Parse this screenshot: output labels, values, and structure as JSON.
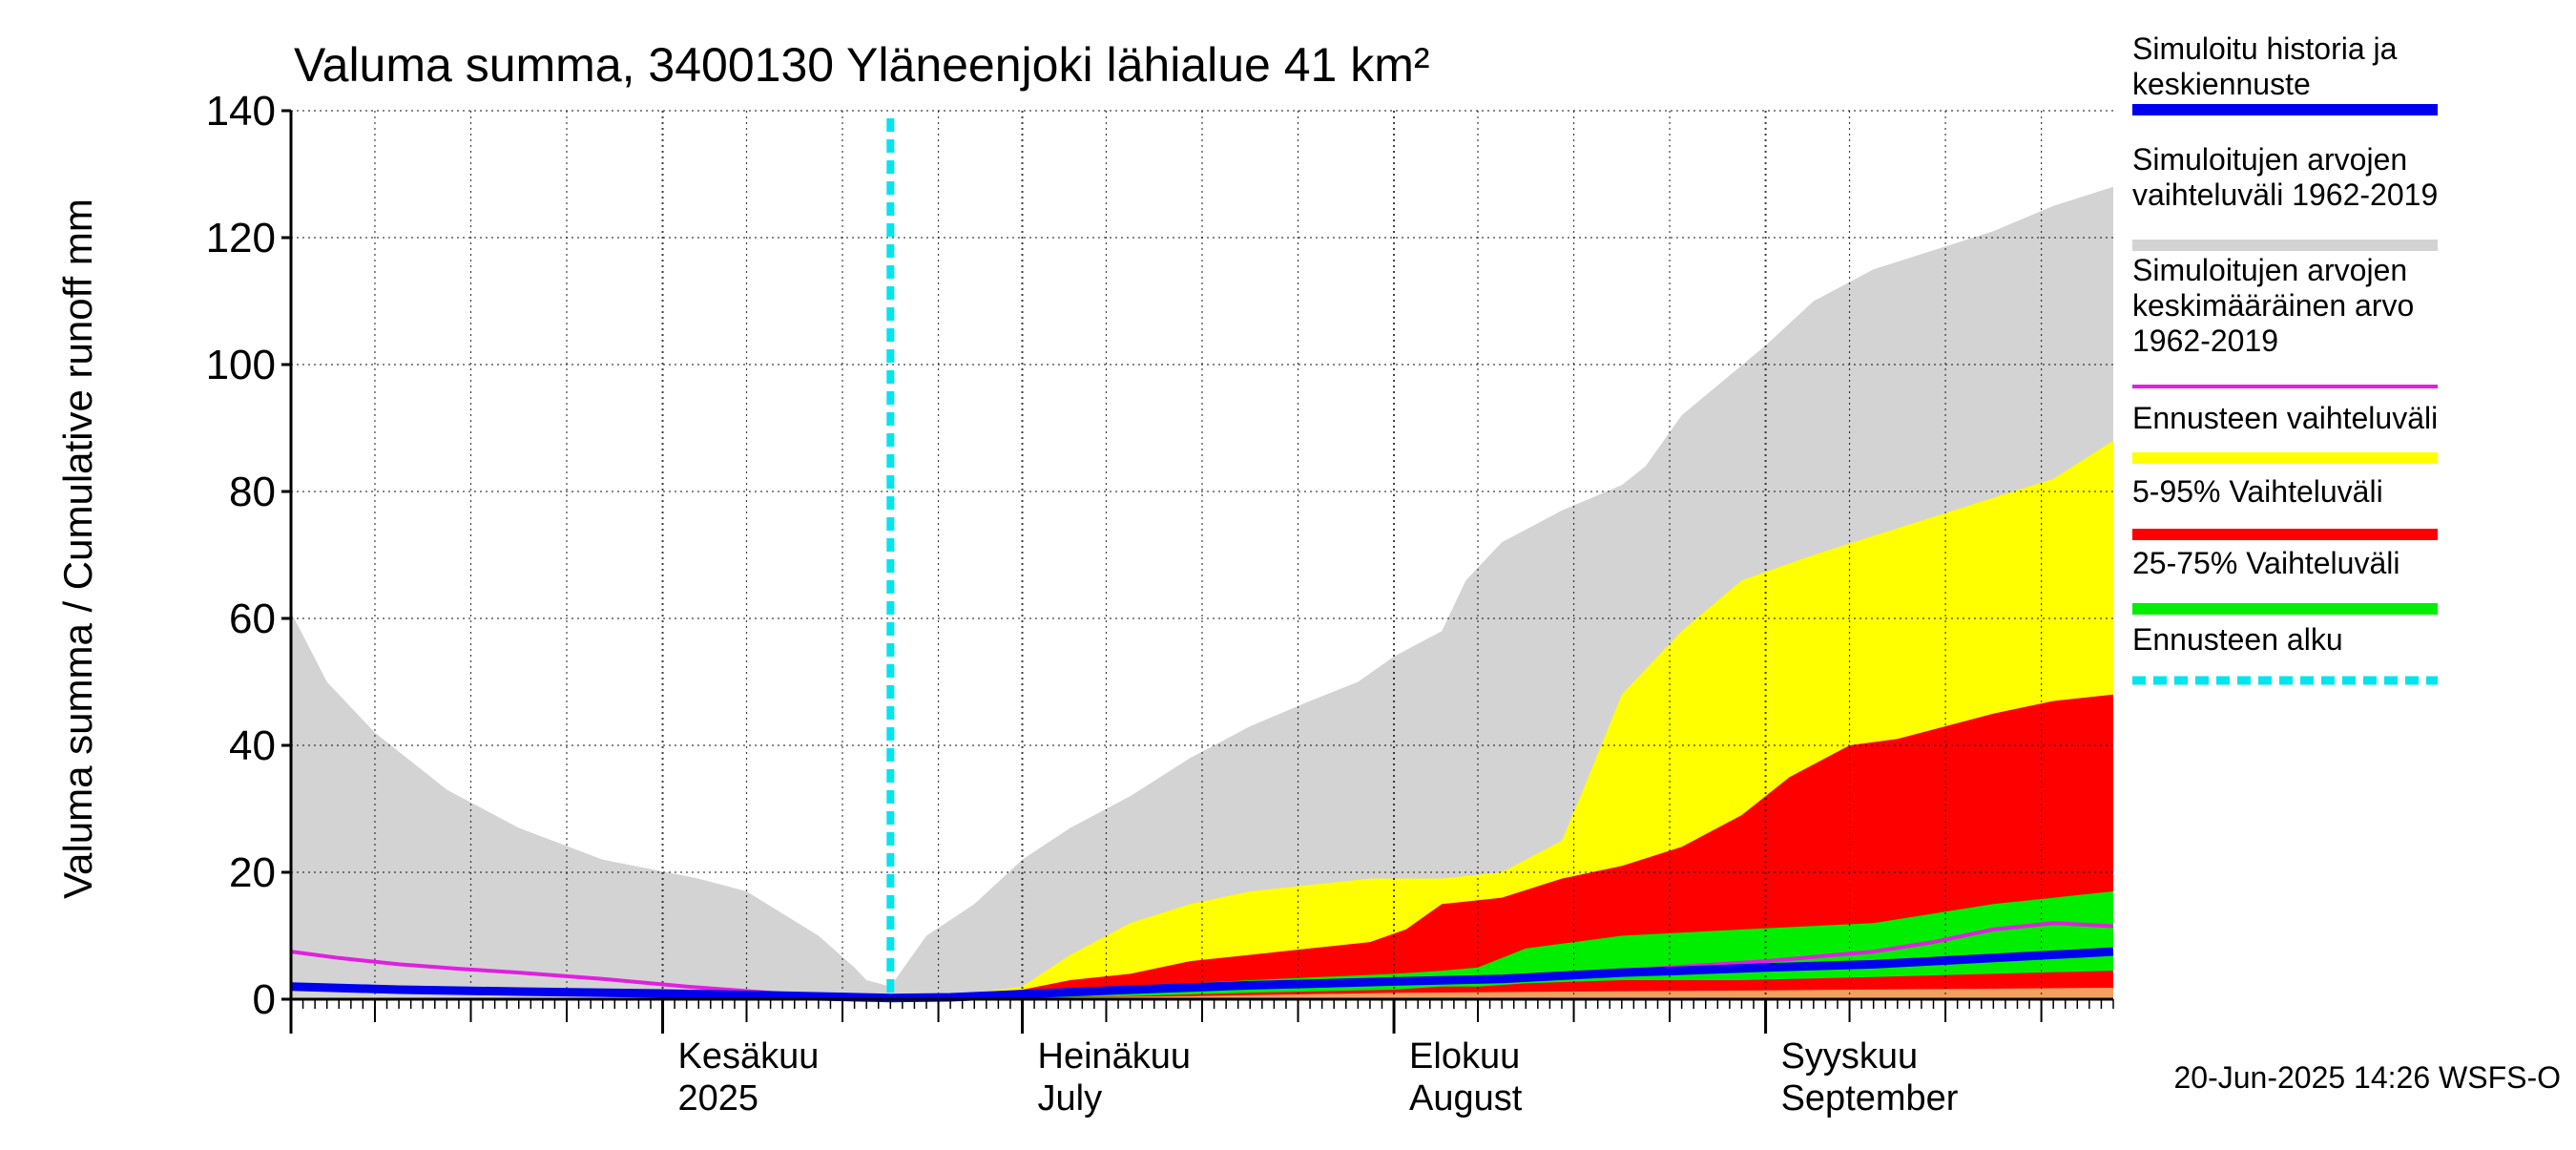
{
  "chart_data": {
    "type": "area",
    "title": "Valuma summa, 3400130 Yläneenjoki lähialue 41 km²",
    "ylabel": "Valuma summa / Cumulative runoff    mm",
    "ylim": [
      0,
      140
    ],
    "yticks": [
      "0",
      "20",
      "40",
      "60",
      "80",
      "100",
      "120",
      "140"
    ],
    "xlim": [
      "2025-05-01",
      "2025-09-30"
    ],
    "month_labels": [
      {
        "date": "2025-06-01",
        "line1": "Kesäkuu",
        "line2": "2025"
      },
      {
        "date": "2025-07-01",
        "line1": "Heinäkuu",
        "line2": "July"
      },
      {
        "date": "2025-08-01",
        "line1": "Elokuu",
        "line2": "August"
      },
      {
        "date": "2025-09-01",
        "line1": "Syyskuu",
        "line2": "September"
      }
    ],
    "grid": true,
    "legend_position": "right",
    "forecast_start": "2025-06-20",
    "footer": "20-Jun-2025 14:26 WSFS-O",
    "colors": {
      "history_range": "#d3d3d3",
      "forecast_range": "#ffff00",
      "p5_95": "#ff0000",
      "p25_75": "#00ee00",
      "mean": "#e020e0",
      "simulated": "#0000ee",
      "forecast_start": "#00e5ee",
      "low_band": "#f0a060"
    },
    "legend": [
      {
        "key": "simulated",
        "label_lines": [
          "Simuloitu historia ja",
          "keskiennuste"
        ],
        "style": "solid"
      },
      {
        "key": "history_range",
        "label_lines": [
          "Simuloitujen arvojen",
          "vaihteluväli 1962-2019"
        ],
        "style": "solid"
      },
      {
        "key": "mean",
        "label_lines": [
          "Simuloitujen arvojen",
          "keskimääräinen arvo",
          "   1962-2019"
        ],
        "style": "thin"
      },
      {
        "key": "forecast_range",
        "label_lines": [
          "Ennusteen vaihteluväli"
        ],
        "style": "solid"
      },
      {
        "key": "p5_95",
        "label_lines": [
          "5-95% Vaihteluväli"
        ],
        "style": "solid"
      },
      {
        "key": "p25_75",
        "label_lines": [
          "25-75% Vaihteluväli"
        ],
        "style": "solid"
      },
      {
        "key": "forecast_start",
        "label_lines": [
          "Ennusteen alku"
        ],
        "style": "dashed"
      }
    ],
    "series": {
      "history_range": {
        "x": [
          "2025-05-01",
          "2025-05-04",
          "2025-05-08",
          "2025-05-14",
          "2025-05-20",
          "2025-05-27",
          "2025-06-04",
          "2025-06-08",
          "2025-06-14",
          "2025-06-17",
          "2025-06-18",
          "2025-06-20",
          "2025-06-23",
          "2025-06-27",
          "2025-07-01",
          "2025-07-05",
          "2025-07-10",
          "2025-07-15",
          "2025-07-20",
          "2025-07-25",
          "2025-07-29",
          "2025-08-01",
          "2025-08-05",
          "2025-08-07",
          "2025-08-10",
          "2025-08-15",
          "2025-08-20",
          "2025-08-22",
          "2025-08-25",
          "2025-09-01",
          "2025-09-05",
          "2025-09-10",
          "2025-09-15",
          "2025-09-20",
          "2025-09-25",
          "2025-09-30"
        ],
        "upper": [
          61,
          50,
          42,
          33,
          27,
          22,
          19,
          17,
          10,
          5,
          3,
          2,
          10,
          15,
          22,
          27,
          32,
          38,
          43,
          47,
          50,
          54,
          58,
          66,
          72,
          77,
          81,
          84,
          92,
          103,
          110,
          115,
          118,
          121,
          125,
          128
        ],
        "lower": [
          0,
          0,
          0,
          0,
          0,
          0,
          0,
          0,
          0,
          0,
          0,
          0,
          0,
          0,
          0,
          0,
          0,
          0,
          0,
          0,
          0,
          0,
          0,
          0,
          0,
          0,
          0,
          0,
          0,
          0,
          0,
          0,
          0,
          0,
          0,
          0
        ]
      },
      "forecast_range": {
        "x": [
          "2025-06-20",
          "2025-06-25",
          "2025-07-01",
          "2025-07-05",
          "2025-07-10",
          "2025-07-15",
          "2025-07-20",
          "2025-07-25",
          "2025-07-30",
          "2025-08-05",
          "2025-08-10",
          "2025-08-15",
          "2025-08-17",
          "2025-08-20",
          "2025-08-25",
          "2025-08-30",
          "2025-09-05",
          "2025-09-10",
          "2025-09-15",
          "2025-09-20",
          "2025-09-25",
          "2025-09-30"
        ],
        "upper": [
          0,
          0.5,
          2,
          7,
          12,
          15,
          17,
          18,
          19,
          19,
          20,
          25,
          34,
          48,
          58,
          66,
          70,
          73,
          76,
          79,
          82,
          88
        ],
        "lower": [
          0,
          0,
          0,
          0,
          0,
          0,
          0,
          0,
          0,
          0,
          0,
          0,
          0,
          0,
          0,
          0,
          0,
          0,
          0,
          0,
          0,
          0
        ]
      },
      "p5_95": {
        "x": [
          "2025-06-20",
          "2025-06-25",
          "2025-07-01",
          "2025-07-05",
          "2025-07-10",
          "2025-07-15",
          "2025-07-20",
          "2025-07-25",
          "2025-07-30",
          "2025-08-02",
          "2025-08-05",
          "2025-08-10",
          "2025-08-15",
          "2025-08-20",
          "2025-08-25",
          "2025-08-30",
          "2025-09-03",
          "2025-09-08",
          "2025-09-12",
          "2025-09-16",
          "2025-09-20",
          "2025-09-25",
          "2025-09-30"
        ],
        "upper": [
          0,
          0.5,
          1.5,
          3,
          4,
          6,
          7,
          8,
          9,
          11,
          15,
          16,
          19,
          21,
          24,
          29,
          35,
          40,
          41,
          43,
          45,
          47,
          48
        ],
        "lower": [
          0,
          0,
          0,
          0,
          0,
          0,
          0,
          0,
          0,
          0,
          0,
          0,
          0,
          0,
          0,
          0,
          0,
          0,
          0,
          0,
          0,
          0,
          0
        ]
      },
      "p25_75": {
        "x": [
          "2025-06-20",
          "2025-06-25",
          "2025-07-01",
          "2025-07-10",
          "2025-07-20",
          "2025-08-01",
          "2025-08-05",
          "2025-08-08",
          "2025-08-12",
          "2025-08-20",
          "2025-08-30",
          "2025-09-10",
          "2025-09-20",
          "2025-09-30"
        ],
        "upper": [
          0,
          0.5,
          1,
          2,
          3,
          4,
          4.5,
          5,
          8,
          10,
          11,
          12,
          15,
          17
        ],
        "lower": [
          0,
          0,
          0.2,
          0.5,
          1,
          1.5,
          2,
          2,
          2.5,
          3,
          3,
          3.5,
          4,
          4.5
        ]
      },
      "low_band": {
        "x": [
          "2025-06-20",
          "2025-07-01",
          "2025-07-15",
          "2025-08-01",
          "2025-08-15",
          "2025-09-01",
          "2025-09-15",
          "2025-09-30"
        ],
        "upper": [
          0,
          0.2,
          0.5,
          1,
          1.2,
          1.4,
          1.6,
          1.8
        ],
        "lower": [
          0,
          0,
          0,
          0,
          0,
          0,
          0,
          0
        ]
      },
      "mean": {
        "x": [
          "2025-05-01",
          "2025-05-05",
          "2025-05-10",
          "2025-05-15",
          "2025-05-20",
          "2025-05-27",
          "2025-06-03",
          "2025-06-10",
          "2025-06-15",
          "2025-06-20",
          "2025-06-25",
          "2025-07-01",
          "2025-07-10",
          "2025-07-20",
          "2025-08-01",
          "2025-08-10",
          "2025-08-20",
          "2025-09-01",
          "2025-09-10",
          "2025-09-15",
          "2025-09-20",
          "2025-09-25",
          "2025-09-30"
        ],
        "values": [
          7.5,
          6.5,
          5.5,
          4.8,
          4.2,
          3.2,
          2.0,
          1.0,
          0.4,
          0.3,
          0.6,
          1.2,
          1.8,
          2.5,
          3.0,
          3.5,
          4.5,
          6,
          7.5,
          9,
          11,
          12,
          11.5
        ]
      },
      "simulated": {
        "x": [
          "2025-05-01",
          "2025-05-10",
          "2025-05-20",
          "2025-06-01",
          "2025-06-10",
          "2025-06-20",
          "2025-06-25",
          "2025-07-01",
          "2025-07-10",
          "2025-07-20",
          "2025-08-01",
          "2025-08-10",
          "2025-08-20",
          "2025-08-25",
          "2025-09-01",
          "2025-09-10",
          "2025-09-20",
          "2025-09-30"
        ],
        "values": [
          2,
          1.5,
          1.2,
          0.9,
          0.6,
          0.2,
          0.3,
          0.8,
          1.5,
          2.2,
          2.8,
          3.2,
          4.2,
          4.5,
          5,
          5.5,
          6.5,
          7.5
        ]
      }
    }
  }
}
